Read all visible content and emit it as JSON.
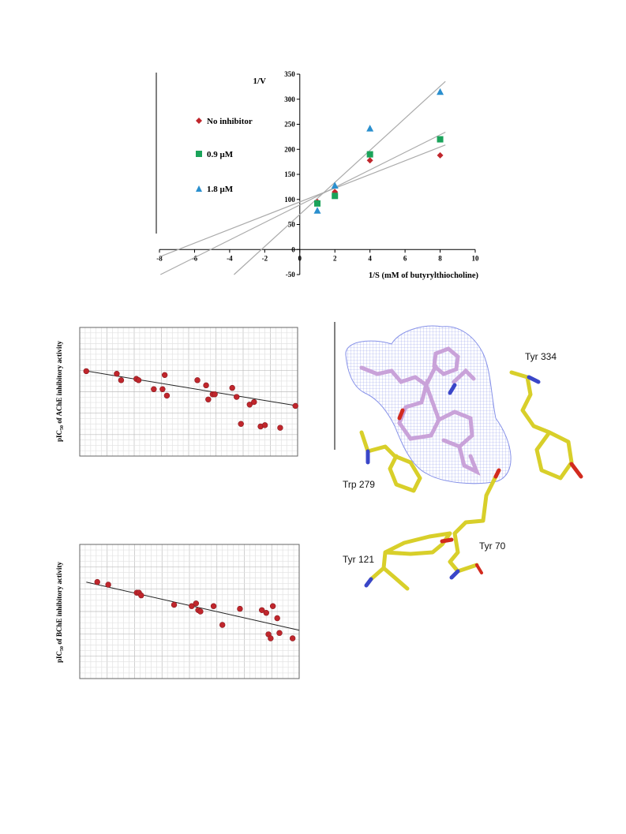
{
  "lineweaver_burk": {
    "ylabel": "1/V",
    "xlabel": "1/S (mM of butyrylthiocholine)",
    "x_ticks": [
      "-8",
      "-6",
      "-4",
      "-2",
      "0",
      "2",
      "4",
      "6",
      "8",
      "10"
    ],
    "y_ticks": [
      "-50",
      "0",
      "50",
      "100",
      "150",
      "200",
      "250",
      "300",
      "350"
    ],
    "legend": [
      "No inhibitor",
      "0.9 μM",
      "1.8 μM"
    ]
  },
  "docking": {
    "labels": [
      "Tyr 334",
      "Trp 279",
      "Tyr 70",
      "Tyr 121"
    ]
  },
  "corr_ache": {
    "ylabel": "pIC50 of AChE inhibitory activity"
  },
  "corr_bche": {
    "ylabel": "pIC50 of BChE inhibitory activity"
  },
  "chart_data": [
    {
      "type": "scatter",
      "xlabel": "1/S (mM of butyrylthiocholine)",
      "ylabel": "1/V",
      "xlim": [
        -8,
        10
      ],
      "ylim": [
        -50,
        350
      ],
      "grid": false,
      "legend_position": "left",
      "series": [
        {
          "name": "No inhibitor",
          "marker": "diamond",
          "color": "#c0262c",
          "x": [
            1,
            2,
            4,
            8
          ],
          "y": [
            95,
            115,
            178,
            188
          ],
          "fit": {
            "slope": 13.7,
            "intercept": 95
          }
        },
        {
          "name": "0.9 μM",
          "marker": "square",
          "color": "#1aa35a",
          "x": [
            1,
            2,
            4,
            8
          ],
          "y": [
            92,
            107,
            190,
            220
          ],
          "fit": {
            "slope": 17.5,
            "intercept": 89
          }
        },
        {
          "name": "1.8 μM",
          "marker": "triangle",
          "color": "#2a8fce",
          "x": [
            1,
            2,
            4,
            8
          ],
          "y": [
            78,
            128,
            242,
            315
          ],
          "fit": {
            "slope": 32,
            "intercept": 70
          }
        }
      ]
    },
    {
      "type": "scatter",
      "ylabel": "pIC50 of AChE inhibitory activity",
      "grid": true,
      "xlim": [
        0,
        1
      ],
      "ylim": [
        0,
        1
      ],
      "series": [
        {
          "color": "#c0262c",
          "x": [
            0.03,
            0.17,
            0.19,
            0.26,
            0.27,
            0.34,
            0.38,
            0.39,
            0.4,
            0.54,
            0.58,
            0.59,
            0.61,
            0.62,
            0.7,
            0.72,
            0.74,
            0.78,
            0.8,
            0.83,
            0.85,
            0.92,
            0.99
          ],
          "y": [
            0.66,
            0.64,
            0.59,
            0.6,
            0.59,
            0.52,
            0.52,
            0.63,
            0.47,
            0.59,
            0.55,
            0.44,
            0.48,
            0.48,
            0.53,
            0.46,
            0.25,
            0.4,
            0.42,
            0.23,
            0.24,
            0.22,
            0.39
          ],
          "fit": {
            "slope": -0.28,
            "intercept": 0.67
          }
        }
      ]
    },
    {
      "type": "scatter",
      "ylabel": "pIC50 of BChE inhibitory activity",
      "grid": true,
      "xlim": [
        0,
        1
      ],
      "ylim": [
        0,
        1
      ],
      "series": [
        {
          "color": "#c0262c",
          "x": [
            0.08,
            0.13,
            0.26,
            0.27,
            0.28,
            0.43,
            0.51,
            0.53,
            0.54,
            0.55,
            0.61,
            0.65,
            0.73,
            0.83,
            0.85,
            0.86,
            0.87,
            0.88,
            0.9,
            0.91,
            0.97
          ],
          "y": [
            0.72,
            0.7,
            0.64,
            0.64,
            0.62,
            0.55,
            0.54,
            0.56,
            0.51,
            0.5,
            0.54,
            0.4,
            0.52,
            0.51,
            0.49,
            0.33,
            0.3,
            0.54,
            0.45,
            0.34,
            0.3
          ],
          "fit": {
            "slope": -0.37,
            "intercept": 0.73
          }
        }
      ]
    }
  ]
}
